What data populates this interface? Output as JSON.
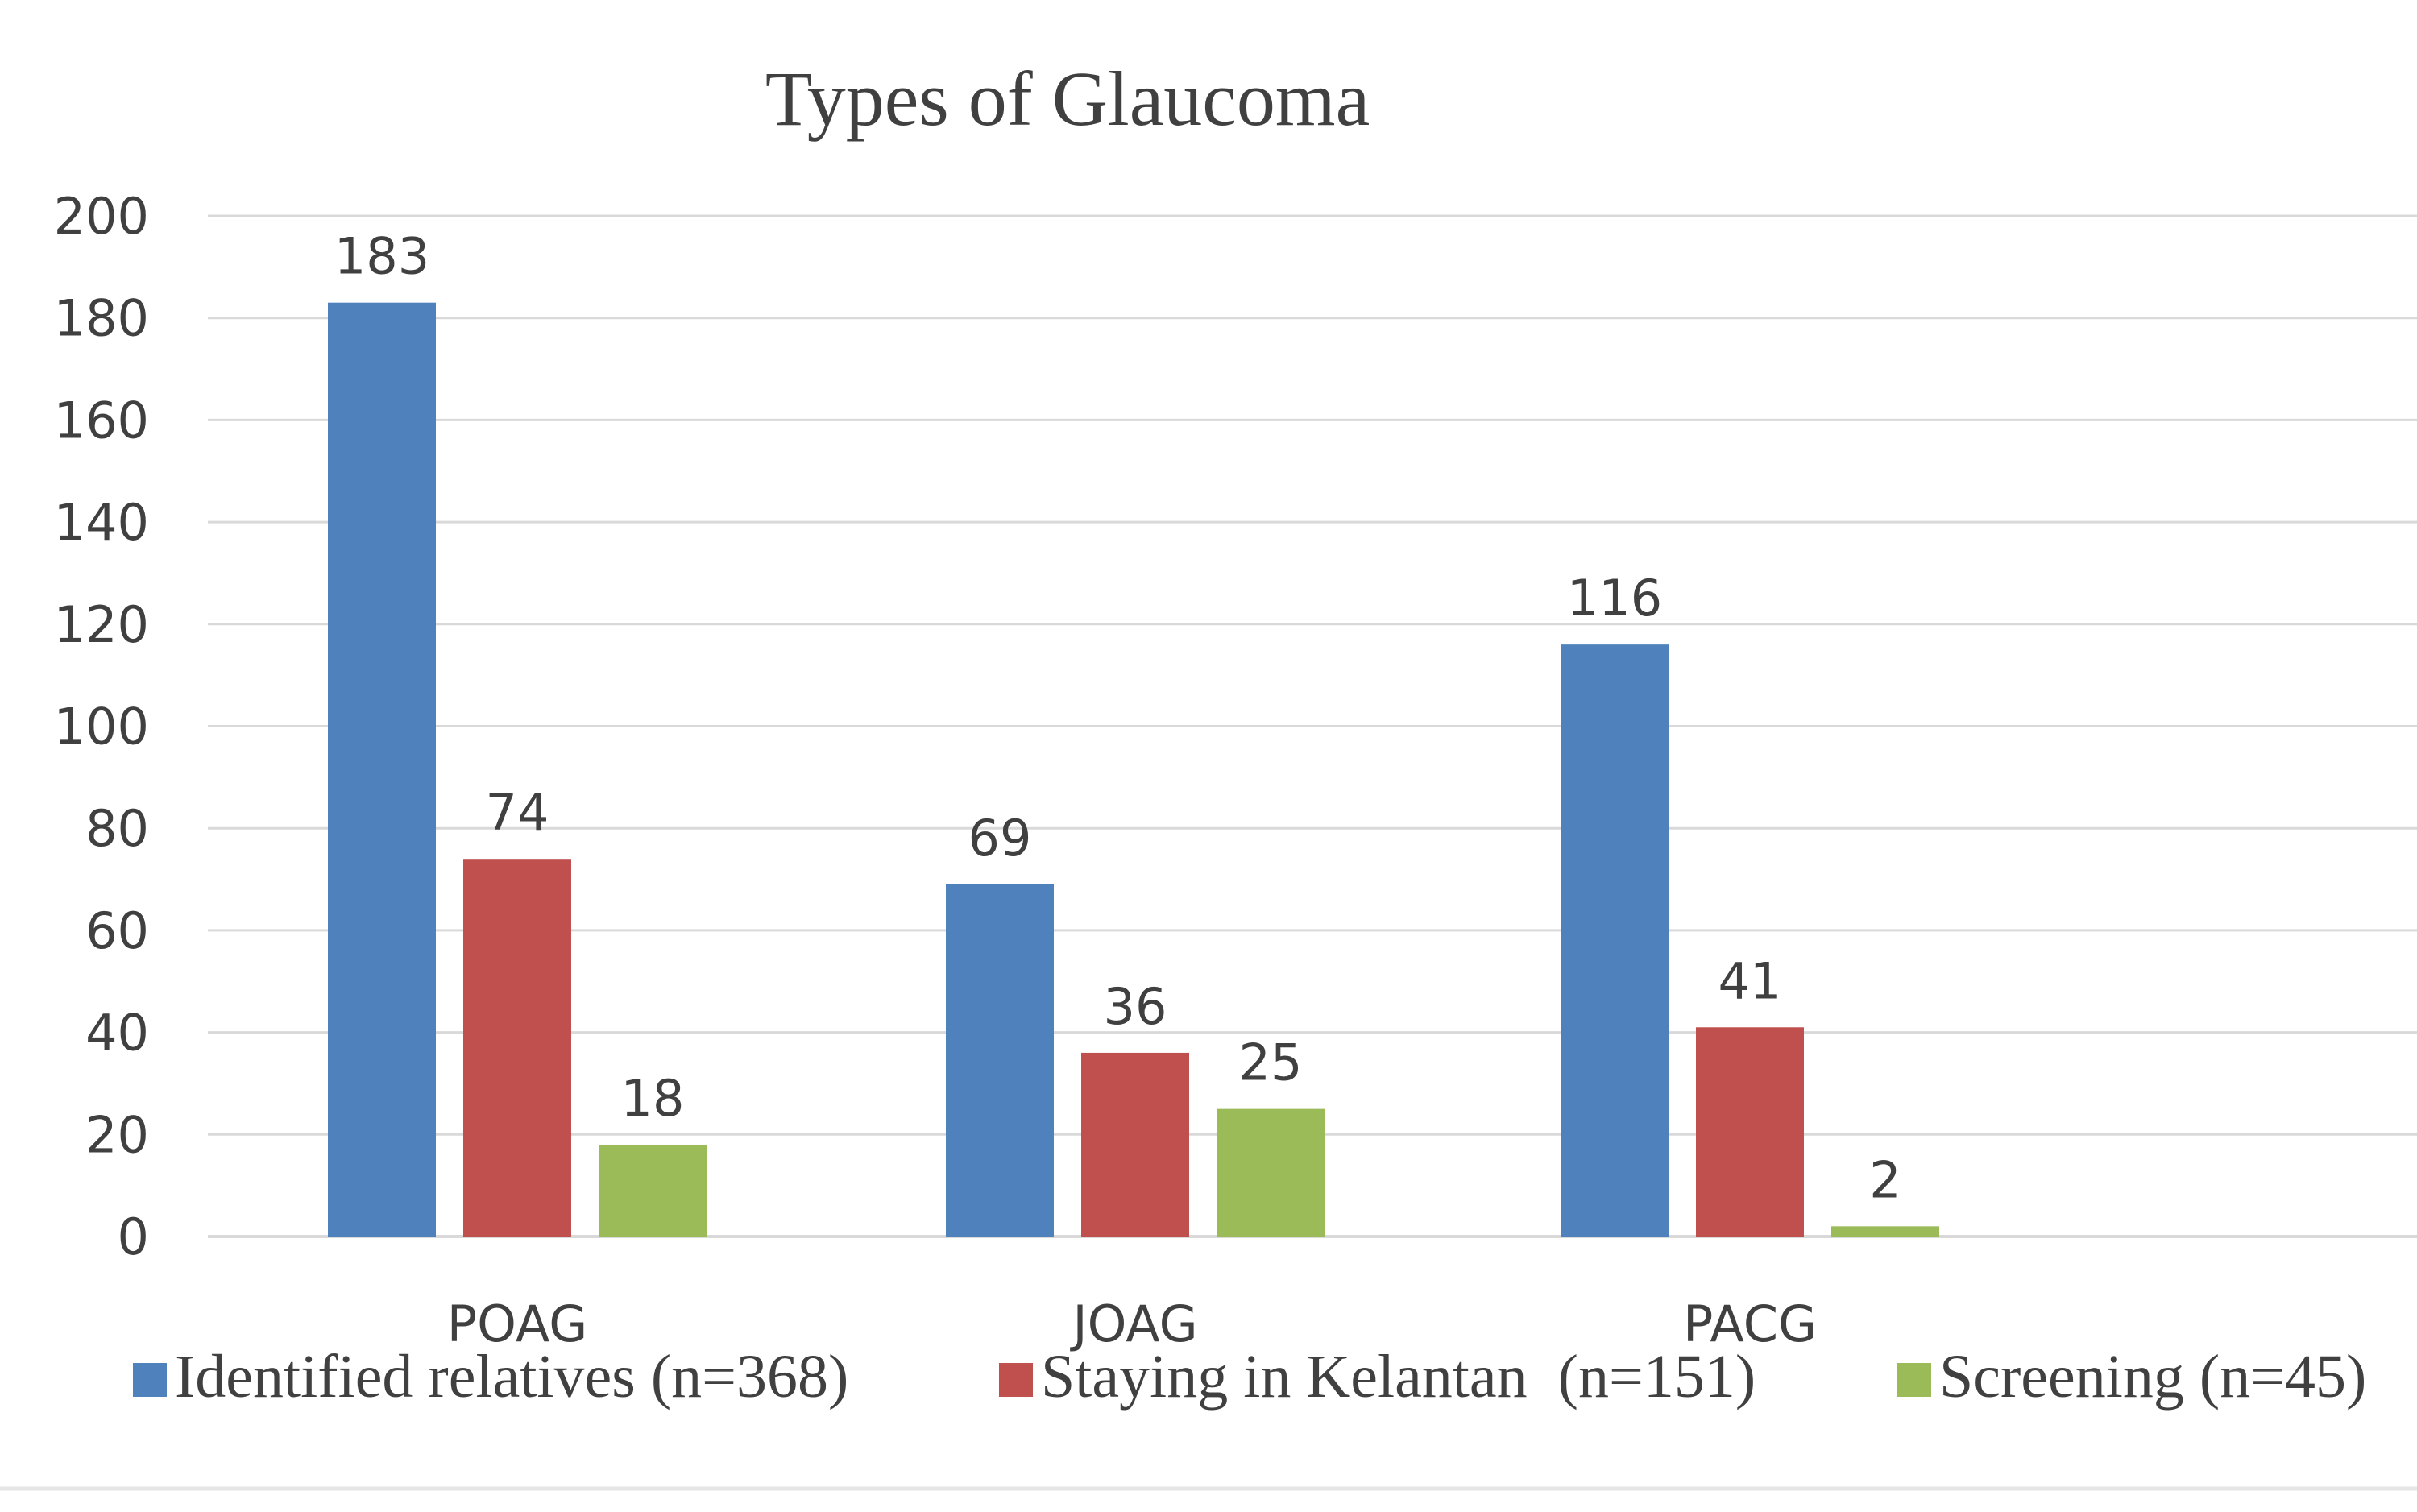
{
  "chart_data": {
    "type": "bar",
    "title": "Types of Glaucoma",
    "categories": [
      "POAG",
      "JOAG",
      "PACG"
    ],
    "series": [
      {
        "name": "Identified relatives (n=368)",
        "values": [
          183,
          69,
          116
        ],
        "color": "#4f81bd"
      },
      {
        "name": "Staying in Kelantan  (n=151)",
        "values": [
          74,
          36,
          41
        ],
        "color": "#c0504d"
      },
      {
        "name": "Screening (n=45)",
        "values": [
          18,
          25,
          2
        ],
        "color": "#9bbb59"
      }
    ],
    "ylim": [
      0,
      200
    ],
    "yticks": [
      "0",
      "20",
      "40",
      "60",
      "80",
      "100",
      "120",
      "140",
      "160",
      "180",
      "200"
    ],
    "xlabel": "",
    "ylabel": "",
    "grid": true,
    "legend": "bottom",
    "data_labels": true
  }
}
